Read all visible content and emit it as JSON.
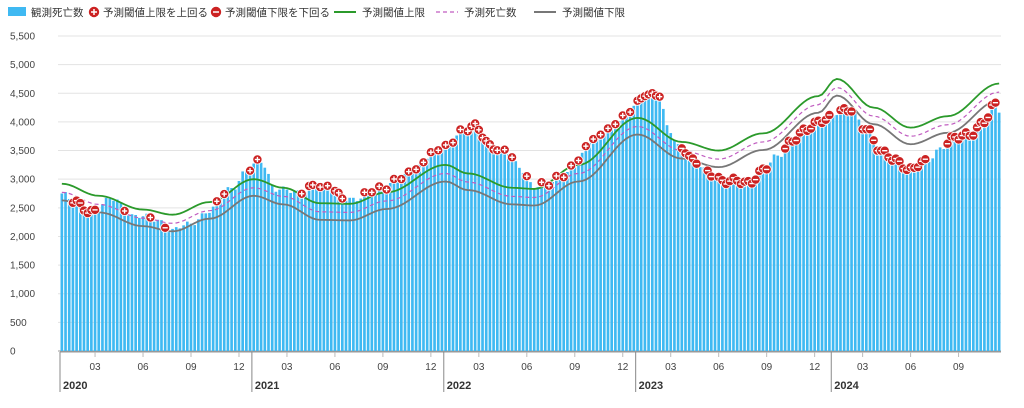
{
  "chart_data": {
    "type": "bar",
    "title": "",
    "xlabel": "",
    "ylabel": "",
    "ylim": [
      0,
      5500
    ],
    "y_ticks": [
      0,
      500,
      1000,
      1500,
      2000,
      2500,
      3000,
      3500,
      4000,
      4500,
      5000,
      5500
    ],
    "y_tick_labels": [
      "0",
      "500",
      "1,000",
      "1,500",
      "2,000",
      "2,500",
      "3,000",
      "3,500",
      "4,000",
      "4,500",
      "5,000",
      "5,500"
    ],
    "x_month_ticks": [
      {
        "idx": 9,
        "label": "03"
      },
      {
        "idx": 22,
        "label": "06"
      },
      {
        "idx": 35,
        "label": "09"
      },
      {
        "idx": 48,
        "label": "12"
      },
      {
        "idx": 61,
        "label": "03"
      },
      {
        "idx": 74,
        "label": "06"
      },
      {
        "idx": 87,
        "label": "09"
      },
      {
        "idx": 100,
        "label": "12"
      },
      {
        "idx": 113,
        "label": "03"
      },
      {
        "idx": 126,
        "label": "06"
      },
      {
        "idx": 139,
        "label": "09"
      },
      {
        "idx": 152,
        "label": "12"
      },
      {
        "idx": 165,
        "label": "03"
      },
      {
        "idx": 178,
        "label": "06"
      },
      {
        "idx": 191,
        "label": "09"
      },
      {
        "idx": 204,
        "label": "12"
      },
      {
        "idx": 217,
        "label": "03"
      },
      {
        "idx": 230,
        "label": "06"
      },
      {
        "idx": 243,
        "label": "09"
      }
    ],
    "x_year_ticks": [
      {
        "idx": 0,
        "label": "2020"
      },
      {
        "idx": 52,
        "label": "2021"
      },
      {
        "idx": 104,
        "label": "2022"
      },
      {
        "idx": 156,
        "label": "2023"
      },
      {
        "idx": 209,
        "label": "2024"
      }
    ],
    "n_weeks": 255,
    "grid": true,
    "legend_position": "top-left",
    "legend": [
      {
        "label": "観測死亡数",
        "kind": "bar",
        "color": "#3fb9f2"
      },
      {
        "label": "予測閾値上限を上回る",
        "kind": "marker-plus",
        "color": "#cc2222"
      },
      {
        "label": "予測閾値下限を下回る",
        "kind": "marker-minus",
        "color": "#cc2222"
      },
      {
        "label": "予測閾値上限",
        "kind": "line",
        "color": "#2b9a2b"
      },
      {
        "label": "予測死亡数",
        "kind": "dashed",
        "color": "#c05cc0"
      },
      {
        "label": "予測閾値下限",
        "kind": "line",
        "color": "#777777"
      }
    ],
    "colors": {
      "bar": "#3fb9f2",
      "upper": "#2b9a2b",
      "expected": "#c05cc0",
      "lower": "#777777",
      "marker": "#cc2222"
    },
    "baseline_keypoints": [
      [
        0,
        2770
      ],
      [
        10,
        2560
      ],
      [
        22,
        2320
      ],
      [
        30,
        2230
      ],
      [
        40,
        2450
      ],
      [
        52,
        2850
      ],
      [
        60,
        2700
      ],
      [
        70,
        2430
      ],
      [
        78,
        2420
      ],
      [
        88,
        2620
      ],
      [
        104,
        3100
      ],
      [
        110,
        2950
      ],
      [
        122,
        2700
      ],
      [
        128,
        2680
      ],
      [
        140,
        3100
      ],
      [
        156,
        3920
      ],
      [
        168,
        3500
      ],
      [
        178,
        3350
      ],
      [
        190,
        3650
      ],
      [
        205,
        4300
      ],
      [
        210,
        4600
      ],
      [
        220,
        4100
      ],
      [
        230,
        3750
      ],
      [
        240,
        3950
      ],
      [
        254,
        4520
      ]
    ],
    "upper_offset": 150,
    "lower_offset": 140,
    "observed_keypoints": [
      [
        0,
        2750
      ],
      [
        3,
        2600
      ],
      [
        8,
        2450
      ],
      [
        14,
        2650
      ],
      [
        20,
        2350
      ],
      [
        26,
        2300
      ],
      [
        30,
        2100
      ],
      [
        34,
        2200
      ],
      [
        40,
        2450
      ],
      [
        46,
        2850
      ],
      [
        50,
        3150
      ],
      [
        54,
        3300
      ],
      [
        58,
        2850
      ],
      [
        64,
        2750
      ],
      [
        68,
        2900
      ],
      [
        72,
        2850
      ],
      [
        76,
        2700
      ],
      [
        80,
        2650
      ],
      [
        86,
        2850
      ],
      [
        92,
        3000
      ],
      [
        96,
        3200
      ],
      [
        100,
        3450
      ],
      [
        104,
        3550
      ],
      [
        108,
        3850
      ],
      [
        112,
        3900
      ],
      [
        116,
        3600
      ],
      [
        120,
        3500
      ],
      [
        124,
        3200
      ],
      [
        128,
        2900
      ],
      [
        132,
        2900
      ],
      [
        136,
        3100
      ],
      [
        140,
        3350
      ],
      [
        144,
        3700
      ],
      [
        148,
        3900
      ],
      [
        152,
        4050
      ],
      [
        156,
        4350
      ],
      [
        158,
        4520
      ],
      [
        160,
        4450
      ],
      [
        162,
        4450
      ],
      [
        164,
        3900
      ],
      [
        168,
        3550
      ],
      [
        172,
        3250
      ],
      [
        176,
        3100
      ],
      [
        180,
        2950
      ],
      [
        186,
        2950
      ],
      [
        190,
        3150
      ],
      [
        194,
        3400
      ],
      [
        198,
        3700
      ],
      [
        202,
        3850
      ],
      [
        206,
        4050
      ],
      [
        210,
        4150
      ],
      [
        214,
        4200
      ],
      [
        218,
        3900
      ],
      [
        222,
        3450
      ],
      [
        226,
        3350
      ],
      [
        230,
        3150
      ],
      [
        234,
        3300
      ],
      [
        238,
        3550
      ],
      [
        242,
        3700
      ],
      [
        246,
        3800
      ],
      [
        250,
        4000
      ],
      [
        253,
        4300
      ],
      [
        254,
        4200
      ]
    ],
    "above_threshold_weeks": [
      17,
      24,
      42,
      44,
      51,
      53,
      65,
      67,
      68,
      70,
      72,
      74,
      75,
      76,
      82,
      84,
      86,
      88,
      90,
      92,
      94,
      96,
      98,
      100,
      102,
      104,
      106,
      108,
      110,
      111,
      112,
      113,
      114,
      115,
      116,
      117,
      118,
      120,
      122,
      126,
      130,
      132,
      134,
      136,
      138,
      140,
      142,
      144,
      146,
      148,
      150,
      152,
      154,
      156,
      157,
      158,
      159,
      160,
      161,
      162
    ],
    "below_threshold_weeks": [
      3,
      4,
      5,
      6,
      7,
      8,
      9,
      28,
      168,
      169,
      170,
      171,
      172,
      175,
      176,
      178,
      179,
      180,
      181,
      182,
      183,
      184,
      185,
      186,
      187,
      188,
      189,
      190,
      191,
      196,
      197,
      198,
      199,
      200,
      201,
      202,
      203,
      204,
      205,
      206,
      207,
      208,
      211,
      212,
      213,
      214,
      217,
      218,
      219,
      220,
      221,
      222,
      223,
      224,
      225,
      226,
      227,
      228,
      229,
      230,
      231,
      232,
      233,
      234,
      240,
      241,
      242,
      243,
      244,
      245,
      246,
      247,
      248,
      249,
      250,
      251,
      252,
      253
    ]
  }
}
